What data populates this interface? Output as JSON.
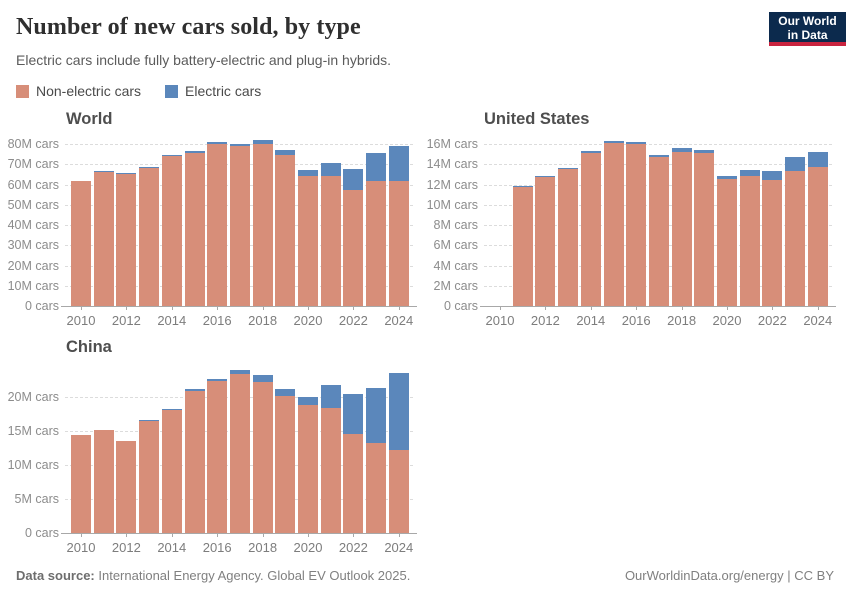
{
  "header": {
    "title": "Number of new cars sold, by type",
    "subtitle": "Electric cars include fully battery-electric and plug-in hybrids.",
    "logo_line1": "Our World",
    "logo_line2": "in Data"
  },
  "legend": {
    "items": [
      {
        "label": "Non-electric cars",
        "color": "#D78E79"
      },
      {
        "label": "Electric cars",
        "color": "#5B87BB"
      }
    ]
  },
  "colors": {
    "non_electric": "#D78E79",
    "electric": "#5B87BB",
    "logo_navy": "#0C2A4D",
    "logo_red": "#C9243F"
  },
  "chart_data": [
    {
      "type": "bar",
      "stacked": true,
      "title": "World",
      "categories": [
        2010,
        2011,
        2012,
        2013,
        2014,
        2015,
        2016,
        2017,
        2018,
        2019,
        2020,
        2021,
        2022,
        2023,
        2024
      ],
      "series": [
        {
          "name": "Non-electric cars",
          "color": "#D78E79",
          "values": [
            62.0,
            66.9,
            65.5,
            68.8,
            74.6,
            75.9,
            80.2,
            79.0,
            80.0,
            74.9,
            64.2,
            64.3,
            57.6,
            62.0,
            61.8
          ]
        },
        {
          "name": "Electric cars",
          "color": "#5B87BB",
          "values": [
            0.01,
            0.05,
            0.13,
            0.2,
            0.32,
            0.55,
            0.75,
            1.2,
            2.0,
            2.1,
            3.0,
            6.6,
            10.2,
            13.9,
            17.3
          ]
        }
      ],
      "ylim": [
        0,
        83.6
      ],
      "yticks": [
        0,
        10,
        20,
        30,
        40,
        50,
        60,
        70,
        80
      ],
      "ytick_suffix": "M cars",
      "ytick_zero_label": "0 cars",
      "xticks": [
        2010,
        2012,
        2014,
        2016,
        2018,
        2020,
        2022,
        2024
      ],
      "grid": true,
      "legend_position": "top"
    },
    {
      "type": "bar",
      "stacked": true,
      "title": "United States",
      "categories": [
        2010,
        2011,
        2012,
        2013,
        2014,
        2015,
        2016,
        2017,
        2018,
        2019,
        2020,
        2021,
        2022,
        2023,
        2024
      ],
      "series": [
        {
          "name": "Non-electric cars",
          "color": "#D78E79",
          "values": [
            null,
            11.85,
            12.8,
            13.5,
            15.15,
            16.15,
            16.0,
            14.75,
            15.25,
            15.1,
            12.55,
            12.85,
            12.45,
            13.35,
            13.7
          ]
        },
        {
          "name": "Electric cars",
          "color": "#5B87BB",
          "values": [
            null,
            0.02,
            0.05,
            0.1,
            0.12,
            0.11,
            0.16,
            0.2,
            0.36,
            0.33,
            0.3,
            0.63,
            0.93,
            1.35,
            1.5
          ]
        }
      ],
      "ylim": [
        0,
        16.7
      ],
      "yticks": [
        0,
        2,
        4,
        6,
        8,
        10,
        12,
        14,
        16
      ],
      "ytick_suffix": "M cars",
      "ytick_zero_label": "0 cars",
      "xticks": [
        2010,
        2012,
        2014,
        2016,
        2018,
        2020,
        2022,
        2024
      ],
      "grid": true,
      "legend_position": "top"
    },
    {
      "type": "bar",
      "stacked": true,
      "title": "China",
      "categories": [
        2010,
        2011,
        2012,
        2013,
        2014,
        2015,
        2016,
        2017,
        2018,
        2019,
        2020,
        2021,
        2022,
        2023,
        2024
      ],
      "series": [
        {
          "name": "Non-electric cars",
          "color": "#D78E79",
          "values": [
            14.4,
            15.1,
            13.5,
            16.5,
            18.1,
            20.9,
            22.25,
            23.35,
            22.1,
            20.1,
            18.8,
            18.4,
            14.5,
            13.2,
            12.2
          ]
        },
        {
          "name": "Electric cars",
          "color": "#5B87BB",
          "values": [
            0.0,
            0.0,
            0.01,
            0.02,
            0.07,
            0.2,
            0.35,
            0.65,
            1.1,
            1.1,
            1.2,
            3.3,
            5.9,
            8.1,
            11.3
          ]
        }
      ],
      "ylim": [
        0,
        25.4
      ],
      "yticks": [
        0,
        5,
        10,
        15,
        20
      ],
      "ytick_suffix": "M cars",
      "ytick_zero_label": "0 cars",
      "xticks": [
        2010,
        2012,
        2014,
        2016,
        2018,
        2020,
        2022,
        2024
      ],
      "grid": true,
      "legend_position": "top"
    }
  ],
  "footer": {
    "source_label": "Data source:",
    "source_text": " International Energy Agency. Global EV Outlook 2025.",
    "right_text": "OurWorldinData.org/energy | CC BY"
  }
}
